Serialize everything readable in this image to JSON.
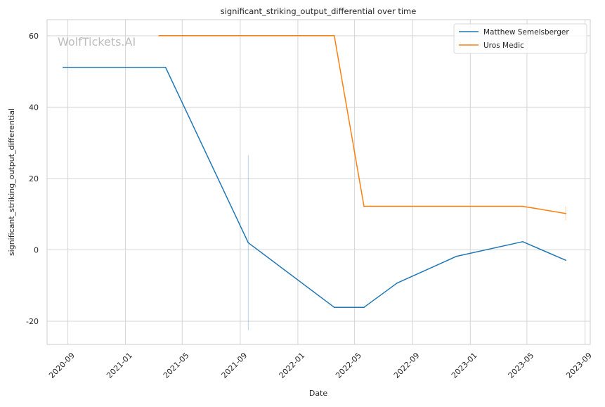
{
  "chart_data": {
    "type": "line",
    "title": "significant_striking_output_differential over time",
    "xlabel": "Date",
    "ylabel": "significant_striking_output_differential",
    "watermark": "WolfTickets.AI",
    "x_ticks": [
      "2020-09",
      "2021-01",
      "2021-05",
      "2021-09",
      "2022-01",
      "2022-05",
      "2022-09",
      "2023-01",
      "2023-05",
      "2023-09"
    ],
    "y_ticks": [
      -20,
      0,
      20,
      40,
      60
    ],
    "xlim": [
      "2020-07-19",
      "2023-09-12"
    ],
    "ylim": [
      -26.5,
      64.5
    ],
    "grid": true,
    "legend_position": "top-right",
    "series": [
      {
        "name": "Matthew Semelsberger",
        "color": "#1f77b4",
        "points": [
          {
            "x": "2020-08-22",
            "y": 51.1
          },
          {
            "x": "2021-03-27",
            "y": 51.1
          },
          {
            "x": "2021-09-18",
            "y": 2.0
          },
          {
            "x": "2022-03-19",
            "y": -16.1
          },
          {
            "x": "2022-05-21",
            "y": -16.1
          },
          {
            "x": "2022-07-30",
            "y": -9.3
          },
          {
            "x": "2022-12-03",
            "y": -1.8
          },
          {
            "x": "2023-04-22",
            "y": 2.3
          },
          {
            "x": "2023-07-22",
            "y": -2.9
          }
        ],
        "error_bars": [
          {
            "x": "2021-09-18",
            "low": -22.5,
            "high": 26.5
          }
        ]
      },
      {
        "name": "Uros Medic",
        "color": "#ff7f0e",
        "points": [
          {
            "x": "2021-03-13",
            "y": 60.0
          },
          {
            "x": "2022-03-19",
            "y": 60.0
          },
          {
            "x": "2022-05-21",
            "y": 12.2
          },
          {
            "x": "2023-04-22",
            "y": 12.2
          },
          {
            "x": "2023-07-22",
            "y": 10.2
          }
        ],
        "error_bars": [
          {
            "x": "2023-07-22",
            "low": 8.2,
            "high": 12.2
          }
        ]
      }
    ]
  }
}
